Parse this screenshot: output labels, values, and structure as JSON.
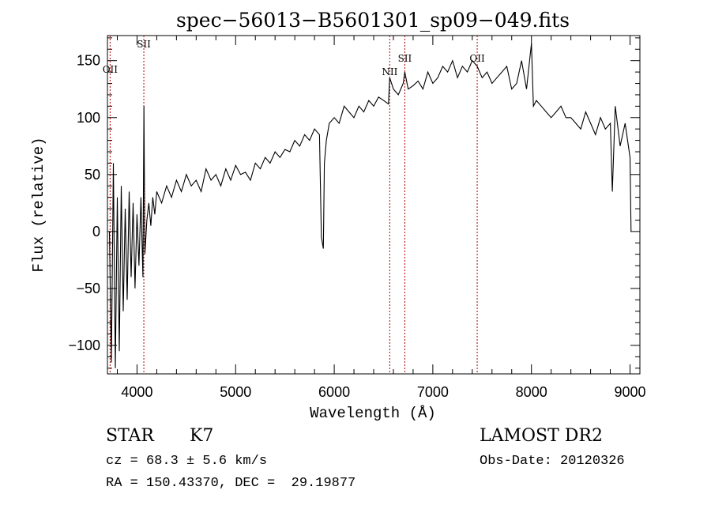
{
  "chart_data": {
    "type": "line",
    "title": "spec−56013−B5601301_sp09−049.fits",
    "xlabel": "Wavelength (Å)",
    "ylabel": "Flux (relative)",
    "xlim": [
      3700,
      9100
    ],
    "ylim": [
      -125,
      172
    ],
    "xticks": [
      4000,
      5000,
      6000,
      7000,
      8000,
      9000
    ],
    "yticks": [
      -100,
      -50,
      0,
      50,
      100,
      150
    ],
    "ytick_labels": [
      "−100",
      "−50",
      "0",
      "50",
      "100",
      "150"
    ],
    "grid": false,
    "series": [
      {
        "color": "#000000",
        "x": [
          3720,
          3740,
          3760,
          3780,
          3800,
          3820,
          3840,
          3860,
          3880,
          3900,
          3920,
          3940,
          3960,
          3980,
          4000,
          4020,
          4040,
          4060,
          4070,
          4080,
          4100,
          4120,
          4140,
          4160,
          4180,
          4200,
          4250,
          4300,
          4350,
          4400,
          4450,
          4500,
          4550,
          4600,
          4650,
          4700,
          4750,
          4800,
          4850,
          4900,
          4950,
          5000,
          5050,
          5100,
          5150,
          5200,
          5250,
          5300,
          5350,
          5400,
          5450,
          5500,
          5550,
          5600,
          5650,
          5700,
          5750,
          5800,
          5850,
          5870,
          5890,
          5900,
          5920,
          5950,
          6000,
          6050,
          6100,
          6150,
          6200,
          6250,
          6300,
          6350,
          6400,
          6450,
          6500,
          6550,
          6563,
          6600,
          6650,
          6700,
          6716,
          6750,
          6800,
          6850,
          6900,
          6950,
          7000,
          7050,
          7100,
          7150,
          7200,
          7250,
          7300,
          7350,
          7400,
          7450,
          7500,
          7550,
          7600,
          7650,
          7700,
          7750,
          7800,
          7850,
          7900,
          7950,
          8000,
          8020,
          8050,
          8100,
          8150,
          8200,
          8250,
          8300,
          8350,
          8400,
          8450,
          8500,
          8550,
          8600,
          8650,
          8700,
          8750,
          8800,
          8820,
          8850,
          8900,
          8950,
          9000,
          9010
        ],
        "y": [
          0,
          -115,
          60,
          -120,
          30,
          -105,
          40,
          -70,
          20,
          -60,
          35,
          -40,
          25,
          -50,
          15,
          -30,
          30,
          -40,
          110,
          -20,
          10,
          25,
          5,
          30,
          15,
          35,
          25,
          40,
          30,
          45,
          35,
          50,
          40,
          45,
          35,
          55,
          45,
          50,
          40,
          55,
          45,
          58,
          50,
          52,
          45,
          60,
          55,
          65,
          60,
          70,
          65,
          72,
          70,
          80,
          75,
          85,
          80,
          90,
          85,
          -5,
          -15,
          60,
          80,
          95,
          100,
          95,
          110,
          105,
          100,
          110,
          105,
          115,
          110,
          118,
          115,
          112,
          135,
          125,
          120,
          130,
          140,
          125,
          128,
          132,
          125,
          140,
          130,
          135,
          145,
          140,
          150,
          135,
          145,
          140,
          150,
          145,
          135,
          140,
          130,
          135,
          140,
          145,
          125,
          130,
          150,
          125,
          165,
          110,
          115,
          110,
          105,
          100,
          105,
          110,
          100,
          100,
          95,
          90,
          105,
          95,
          85,
          100,
          90,
          95,
          35,
          110,
          75,
          95,
          65,
          0
        ]
      }
    ],
    "annotations": [
      {
        "label": "OII",
        "x": 3727
      },
      {
        "label": "SII",
        "x": 4069
      },
      {
        "label": "NII",
        "x": 6563
      },
      {
        "label": "SII",
        "x": 6716
      },
      {
        "label": "OII",
        "x": 7450
      }
    ]
  },
  "info": {
    "class_label": "STAR",
    "subclass": "K7",
    "survey": "LAMOST DR2",
    "cz_line": "cz = 68.3 ± 5.6 km/s",
    "obs_date": "Obs-Date: 20120326",
    "radec_line": "RA = 150.43370, DEC =  29.19877"
  }
}
